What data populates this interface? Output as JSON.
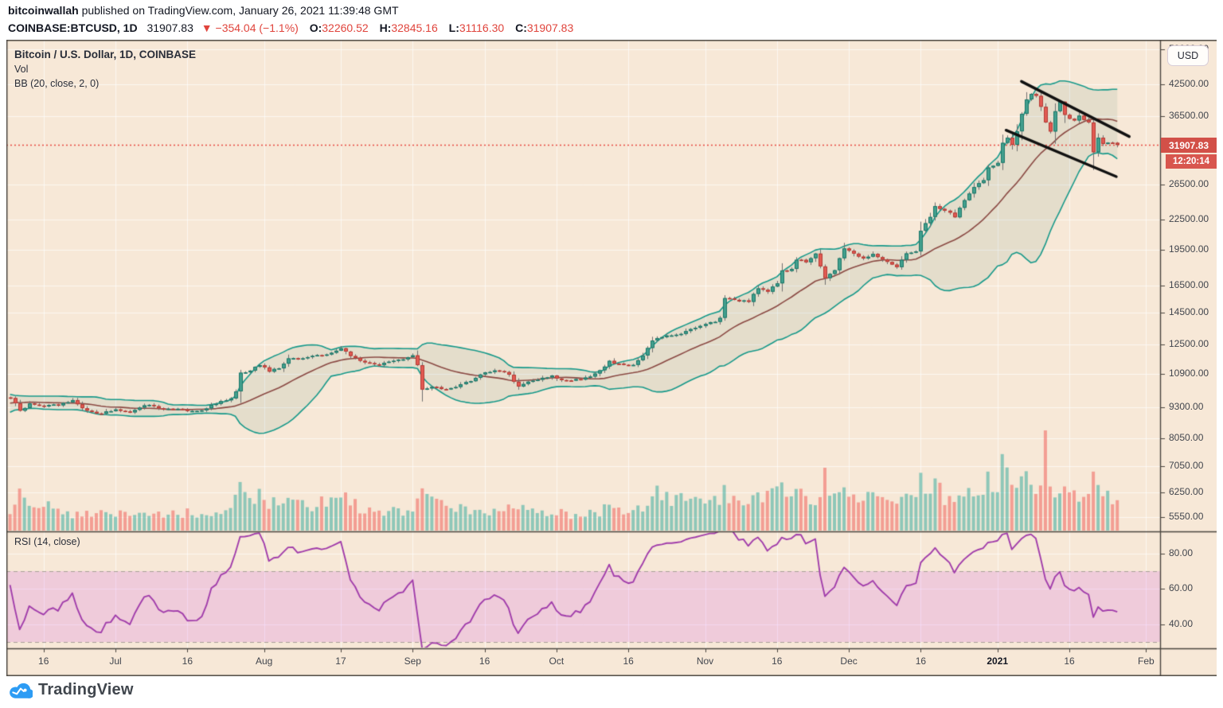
{
  "header": {
    "author": "bitcoinwallah",
    "byline_rest": " published on TradingView.com, January 26, 2021 11:39:48 GMT",
    "symbol": "COINBASE:BTCUSD, 1D",
    "last": "31907.83",
    "change": "▼ −354.04 (−1.1%)",
    "o_label": "O:",
    "o_value": "32260.52",
    "h_label": "H:",
    "h_value": "32845.16",
    "l_label": "L:",
    "l_value": "31116.30",
    "c_label": "C:",
    "c_value": "31907.83"
  },
  "legend": {
    "title": "Bitcoin / U.S. Dollar, 1D, COINBASE",
    "vol": "Vol",
    "bb": "BB (20, close, 2, 0)",
    "rsi": "RSI (14, close)"
  },
  "price_axis": {
    "currency": "USD",
    "badge_price": "31907.83",
    "badge_countdown": "12:20:14",
    "ticks": [
      {
        "label": "50000.00",
        "value": 50000
      },
      {
        "label": "42500.00",
        "value": 42500
      },
      {
        "label": "36500.00",
        "value": 36500
      },
      {
        "label": "26500.00",
        "value": 26500
      },
      {
        "label": "22500.00",
        "value": 22500
      },
      {
        "label": "19500.00",
        "value": 19500
      },
      {
        "label": "16500.00",
        "value": 16500
      },
      {
        "label": "14500.00",
        "value": 14500
      },
      {
        "label": "12500.00",
        "value": 12500
      },
      {
        "label": "10900.00",
        "value": 10900
      },
      {
        "label": "9300.00",
        "value": 9300
      },
      {
        "label": "8050.00",
        "value": 8050
      },
      {
        "label": "7050.00",
        "value": 7050
      },
      {
        "label": "6250.00",
        "value": 6250
      },
      {
        "label": "5550.00",
        "value": 5550
      }
    ]
  },
  "rsi_axis": {
    "ticks": [
      {
        "label": "80.00",
        "value": 80
      },
      {
        "label": "60.00",
        "value": 60
      },
      {
        "label": "40.00",
        "value": 40
      }
    ]
  },
  "time_axis": {
    "ticks": [
      {
        "label": "16",
        "day": 7
      },
      {
        "label": "Jul",
        "day": 22
      },
      {
        "label": "16",
        "day": 37
      },
      {
        "label": "Aug",
        "day": 53
      },
      {
        "label": "17",
        "day": 69
      },
      {
        "label": "Sep",
        "day": 84
      },
      {
        "label": "16",
        "day": 99
      },
      {
        "label": "Oct",
        "day": 114
      },
      {
        "label": "16",
        "day": 129
      },
      {
        "label": "Nov",
        "day": 145
      },
      {
        "label": "16",
        "day": 160
      },
      {
        "label": "Dec",
        "day": 175
      },
      {
        "label": "16",
        "day": 190
      },
      {
        "label": "2021",
        "day": 206,
        "bold": true
      },
      {
        "label": "16",
        "day": 221
      },
      {
        "label": "Feb",
        "day": 237
      }
    ]
  },
  "footer": {
    "brand": "TradingView"
  },
  "colors": {
    "chart_bg": "#f7e8d7",
    "grid": "rgba(255,255,255,0.65)",
    "frame": "#4a453f",
    "up_fill": "#42a08e",
    "up_border": "#1d7668",
    "down_fill": "#e25a52",
    "down_border": "#b23b35",
    "wick": "#6f6f6f",
    "bb_band": "#17998a",
    "bb_basis": "#8b4a44",
    "bb_fill": "rgba(42,115,85,0.09)",
    "vol_up": "rgba(38,166,154,0.5)",
    "vol_down": "rgba(239,83,80,0.5)",
    "price_line": "#e84a42",
    "badge_bg": "#d25048",
    "rsi_line": "#a13dab",
    "rsi_fill": "rgba(199,58,235,0.16)",
    "rsi_dash": "#a99f97",
    "trendline": "#111111",
    "logo_blue": "#2d9cf4"
  },
  "chart_data": {
    "type": "candlestick",
    "title": "Bitcoin / U.S. Dollar, 1D, COINBASE",
    "symbol": "COINBASE:BTCUSD",
    "interval": "1D",
    "scale": "log",
    "last_price": 31907.83,
    "countdown": "12:20:14",
    "today_ohlc": {
      "open": 32260.52,
      "high": 32845.16,
      "low": 31116.3,
      "close": 31907.83
    },
    "change": {
      "abs": -354.04,
      "pct": -1.1
    },
    "price_ticks": [
      5550,
      6250,
      7050,
      8050,
      9300,
      10900,
      12500,
      14500,
      16500,
      19500,
      22500,
      26500,
      36500,
      42500,
      50000
    ],
    "rsi_ticks": [
      40,
      60,
      80
    ],
    "indicators": {
      "volume": true,
      "bollinger": {
        "length": 20,
        "source": "close",
        "stddev": 2,
        "offset": 0
      },
      "rsi": {
        "length": 14,
        "source": "close"
      }
    },
    "note": "day 0 = first visible daily candle; keyframes are [day, value] read off the chart",
    "close_keyframes": [
      [
        -25,
        9380
      ],
      [
        -21,
        8760
      ],
      [
        -17,
        9180
      ],
      [
        -14,
        9520
      ],
      [
        -10,
        9480
      ],
      [
        -7,
        9650
      ],
      [
        -4,
        9580
      ],
      [
        -1,
        9750
      ],
      [
        0,
        9770
      ],
      [
        2,
        9170
      ],
      [
        4,
        9470
      ],
      [
        7,
        9350
      ],
      [
        10,
        9430
      ],
      [
        13,
        9650
      ],
      [
        15,
        9290
      ],
      [
        18,
        9010
      ],
      [
        20,
        9140
      ],
      [
        22,
        9230
      ],
      [
        25,
        9090
      ],
      [
        29,
        9440
      ],
      [
        32,
        9240
      ],
      [
        35,
        9200
      ],
      [
        37,
        9150
      ],
      [
        40,
        9170
      ],
      [
        42,
        9390
      ],
      [
        44,
        9540
      ],
      [
        46,
        9700
      ],
      [
        47,
        10020
      ],
      [
        48,
        10920
      ],
      [
        50,
        11100
      ],
      [
        52,
        11350
      ],
      [
        54,
        11020
      ],
      [
        56,
        11200
      ],
      [
        58,
        11760
      ],
      [
        61,
        11680
      ],
      [
        63,
        11890
      ],
      [
        66,
        11950
      ],
      [
        69,
        12290
      ],
      [
        71,
        11860
      ],
      [
        74,
        11470
      ],
      [
        77,
        11370
      ],
      [
        80,
        11530
      ],
      [
        82,
        11700
      ],
      [
        84,
        11920
      ],
      [
        85,
        11400
      ],
      [
        86,
        10150
      ],
      [
        88,
        10260
      ],
      [
        91,
        10130
      ],
      [
        94,
        10340
      ],
      [
        97,
        10680
      ],
      [
        99,
        10950
      ],
      [
        102,
        11080
      ],
      [
        104,
        10840
      ],
      [
        106,
        10250
      ],
      [
        108,
        10530
      ],
      [
        111,
        10690
      ],
      [
        113,
        10780
      ],
      [
        114,
        10620
      ],
      [
        117,
        10580
      ],
      [
        120,
        10670
      ],
      [
        123,
        11060
      ],
      [
        125,
        11530
      ],
      [
        127,
        11420
      ],
      [
        130,
        11360
      ],
      [
        132,
        11910
      ],
      [
        134,
        12800
      ],
      [
        136,
        12990
      ],
      [
        139,
        13050
      ],
      [
        141,
        13270
      ],
      [
        143,
        13560
      ],
      [
        145,
        13770
      ],
      [
        147,
        13950
      ],
      [
        148,
        14130
      ],
      [
        149,
        15580
      ],
      [
        150,
        15590
      ],
      [
        152,
        15290
      ],
      [
        154,
        15330
      ],
      [
        156,
        16280
      ],
      [
        158,
        16070
      ],
      [
        160,
        16720
      ],
      [
        161,
        17650
      ],
      [
        163,
        17780
      ],
      [
        164,
        18650
      ],
      [
        166,
        18410
      ],
      [
        168,
        19100
      ],
      [
        170,
        17150
      ],
      [
        172,
        17720
      ],
      [
        174,
        19700
      ],
      [
        176,
        19200
      ],
      [
        178,
        18650
      ],
      [
        180,
        19150
      ],
      [
        182,
        18550
      ],
      [
        184,
        18250
      ],
      [
        185,
        18040
      ],
      [
        187,
        19170
      ],
      [
        189,
        19270
      ],
      [
        190,
        21310
      ],
      [
        192,
        22800
      ],
      [
        193,
        23840
      ],
      [
        195,
        23480
      ],
      [
        197,
        22740
      ],
      [
        199,
        24710
      ],
      [
        201,
        26280
      ],
      [
        203,
        27080
      ],
      [
        204,
        28840
      ],
      [
        205,
        28990
      ],
      [
        206,
        29330
      ],
      [
        207,
        32190
      ],
      [
        208,
        33000
      ],
      [
        209,
        31990
      ],
      [
        210,
        33990
      ],
      [
        211,
        36880
      ],
      [
        212,
        39450
      ],
      [
        213,
        40580
      ],
      [
        214,
        40240
      ],
      [
        215,
        38150
      ],
      [
        216,
        35410
      ],
      [
        217,
        34050
      ],
      [
        218,
        37390
      ],
      [
        219,
        39150
      ],
      [
        220,
        36820
      ],
      [
        221,
        36070
      ],
      [
        222,
        35820
      ],
      [
        223,
        36630
      ],
      [
        224,
        35900
      ],
      [
        225,
        35500
      ],
      [
        226,
        30830
      ],
      [
        227,
        32980
      ],
      [
        228,
        32090
      ],
      [
        229,
        32280
      ],
      [
        230,
        32250
      ],
      [
        231,
        31907.83
      ]
    ],
    "volume_keyframes": [
      [
        -25,
        0.12
      ],
      [
        0,
        0.13
      ],
      [
        2,
        0.3
      ],
      [
        4,
        0.18
      ],
      [
        6,
        0.22
      ],
      [
        13,
        0.12
      ],
      [
        18,
        0.16
      ],
      [
        22,
        0.13
      ],
      [
        29,
        0.12
      ],
      [
        37,
        0.14
      ],
      [
        44,
        0.17
      ],
      [
        46,
        0.22
      ],
      [
        48,
        0.35
      ],
      [
        52,
        0.28
      ],
      [
        54,
        0.22
      ],
      [
        58,
        0.24
      ],
      [
        63,
        0.2
      ],
      [
        69,
        0.26
      ],
      [
        74,
        0.18
      ],
      [
        80,
        0.16
      ],
      [
        84,
        0.18
      ],
      [
        86,
        0.32
      ],
      [
        88,
        0.22
      ],
      [
        91,
        0.18
      ],
      [
        97,
        0.15
      ],
      [
        102,
        0.16
      ],
      [
        106,
        0.18
      ],
      [
        111,
        0.13
      ],
      [
        114,
        0.14
      ],
      [
        120,
        0.13
      ],
      [
        125,
        0.18
      ],
      [
        130,
        0.15
      ],
      [
        132,
        0.22
      ],
      [
        134,
        0.32
      ],
      [
        136,
        0.26
      ],
      [
        141,
        0.24
      ],
      [
        145,
        0.22
      ],
      [
        148,
        0.26
      ],
      [
        149,
        0.35
      ],
      [
        152,
        0.24
      ],
      [
        156,
        0.26
      ],
      [
        160,
        0.28
      ],
      [
        161,
        0.32
      ],
      [
        164,
        0.3
      ],
      [
        168,
        0.28
      ],
      [
        170,
        0.4
      ],
      [
        172,
        0.3
      ],
      [
        174,
        0.28
      ],
      [
        178,
        0.25
      ],
      [
        182,
        0.24
      ],
      [
        185,
        0.22
      ],
      [
        190,
        0.38
      ],
      [
        193,
        0.34
      ],
      [
        197,
        0.24
      ],
      [
        199,
        0.26
      ],
      [
        201,
        0.3
      ],
      [
        204,
        0.38
      ],
      [
        206,
        0.36
      ],
      [
        207,
        0.5
      ],
      [
        208,
        0.46
      ],
      [
        210,
        0.42
      ],
      [
        211,
        0.48
      ],
      [
        212,
        0.52
      ],
      [
        213,
        0.5
      ],
      [
        214,
        0.42
      ],
      [
        215,
        0.5
      ],
      [
        216,
        1.0
      ],
      [
        217,
        0.45
      ],
      [
        218,
        0.38
      ],
      [
        219,
        0.42
      ],
      [
        220,
        0.38
      ],
      [
        221,
        0.34
      ],
      [
        222,
        0.32
      ],
      [
        223,
        0.3
      ],
      [
        224,
        0.28
      ],
      [
        225,
        0.34
      ],
      [
        226,
        0.5
      ],
      [
        227,
        0.42
      ],
      [
        228,
        0.3
      ],
      [
        229,
        0.26
      ],
      [
        230,
        0.24
      ],
      [
        231,
        0.2
      ]
    ],
    "trendlines": [
      {
        "from": [
          211,
          43000
        ],
        "to": [
          233.5,
          33200
        ]
      },
      {
        "from": [
          207.8,
          34200
        ],
        "to": [
          230.8,
          27500
        ]
      }
    ]
  }
}
